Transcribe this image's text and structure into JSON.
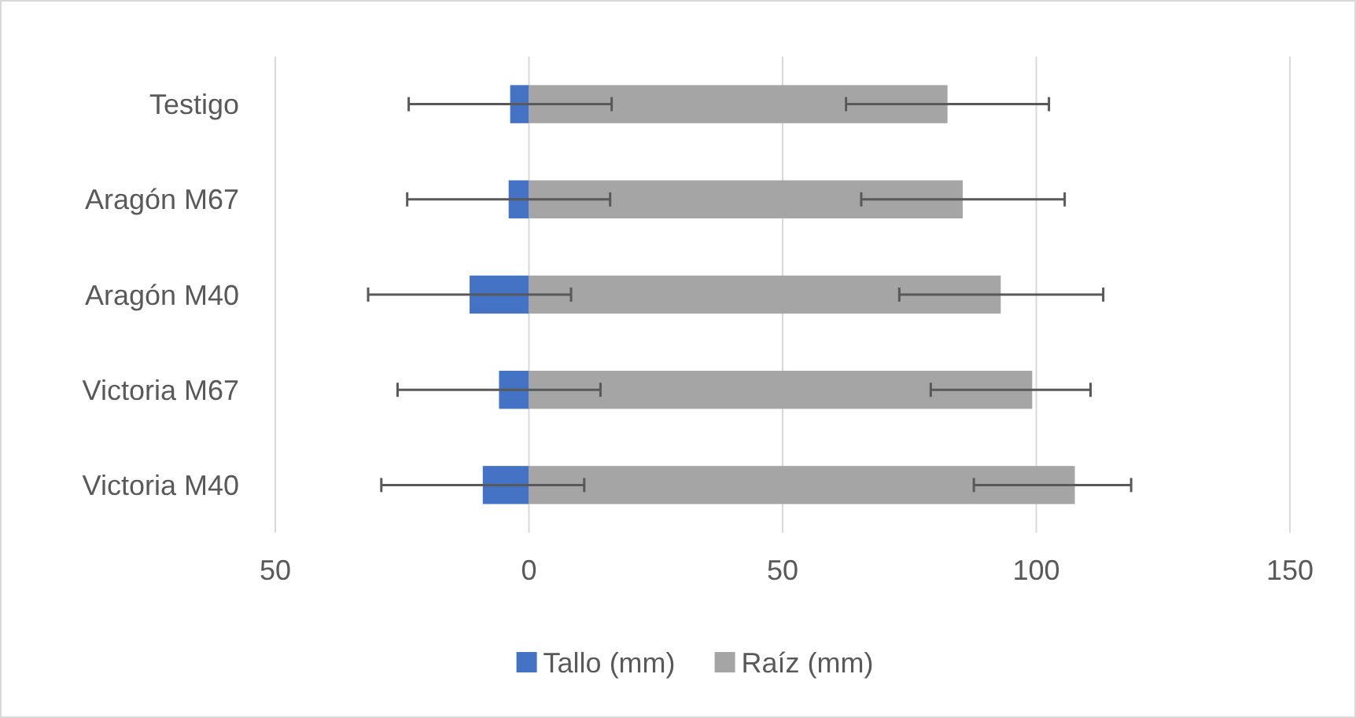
{
  "chart_data": {
    "type": "bar",
    "orientation": "horizontal",
    "stacked": true,
    "categories": [
      "Testigo",
      "Aragón M67",
      "Aragón M40",
      "Victoria M67",
      "Victoria M40"
    ],
    "series": [
      {
        "name": "Tallo (mm)",
        "color": "#4472c4",
        "values": [
          -3.7,
          -4.0,
          -11.7,
          -5.9,
          -9.1
        ],
        "errors": [
          20,
          20,
          20,
          20,
          20
        ]
      },
      {
        "name": "Raíz (mm)",
        "color": "#a5a5a5",
        "values": [
          82.5,
          85.5,
          93.0,
          99.2,
          107.6
        ],
        "errors": [
          [
            62.5,
            102.5
          ],
          [
            65.5,
            105.6
          ],
          [
            73.0,
            113.2
          ],
          [
            79.2,
            110.7
          ],
          [
            87.7,
            118.7
          ]
        ]
      }
    ],
    "xlim": [
      -50,
      150
    ],
    "xticks": [
      {
        "value": -50,
        "label": "50"
      },
      0,
      50,
      100,
      150
    ],
    "grid": "x",
    "legend": "bottom"
  }
}
